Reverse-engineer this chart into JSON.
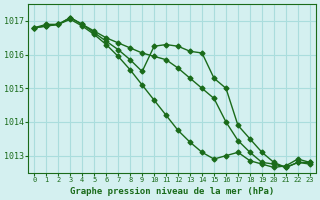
{
  "title": "Graphe pression niveau de la mer (hPa)",
  "bg_color": "#d4f0f0",
  "grid_color": "#aadddd",
  "line_color": "#1a6b1a",
  "marker_color": "#1a6b1a",
  "x_ticks": [
    0,
    1,
    2,
    3,
    4,
    5,
    6,
    7,
    8,
    9,
    10,
    11,
    12,
    13,
    14,
    15,
    16,
    17,
    18,
    19,
    20,
    21,
    22,
    23
  ],
  "y_ticks": [
    1013,
    1014,
    1015,
    1016,
    1017
  ],
  "ylim": [
    1012.5,
    1017.5
  ],
  "xlim": [
    -0.5,
    23.5
  ],
  "series1": [
    1016.8,
    1016.9,
    1016.9,
    1017.1,
    1016.9,
    1016.7,
    1016.5,
    1016.35,
    1016.2,
    1016.05,
    1015.95,
    1015.85,
    1015.6,
    1015.3,
    1015.0,
    1014.7,
    1014.0,
    1013.45,
    1013.1,
    1012.8,
    1012.75,
    1012.65,
    1012.8,
    1012.8
  ],
  "series2": [
    1016.8,
    1016.85,
    1016.9,
    1017.1,
    1016.9,
    1016.65,
    1016.4,
    1016.15,
    1015.85,
    1015.5,
    1016.25,
    1016.3,
    1016.25,
    1016.1,
    1016.05,
    1015.3,
    1015.0,
    1013.9,
    1013.5,
    1013.1,
    1012.8,
    1012.65,
    1012.8,
    1012.75
  ],
  "series3": [
    1016.8,
    1016.85,
    1016.9,
    1017.05,
    1016.85,
    1016.6,
    1016.3,
    1015.95,
    1015.55,
    1015.1,
    1014.65,
    1014.2,
    1013.75,
    1013.4,
    1013.1,
    1012.9,
    1013.0,
    1013.1,
    1012.85,
    1012.75,
    1012.65,
    1012.7,
    1012.9,
    1012.8
  ]
}
